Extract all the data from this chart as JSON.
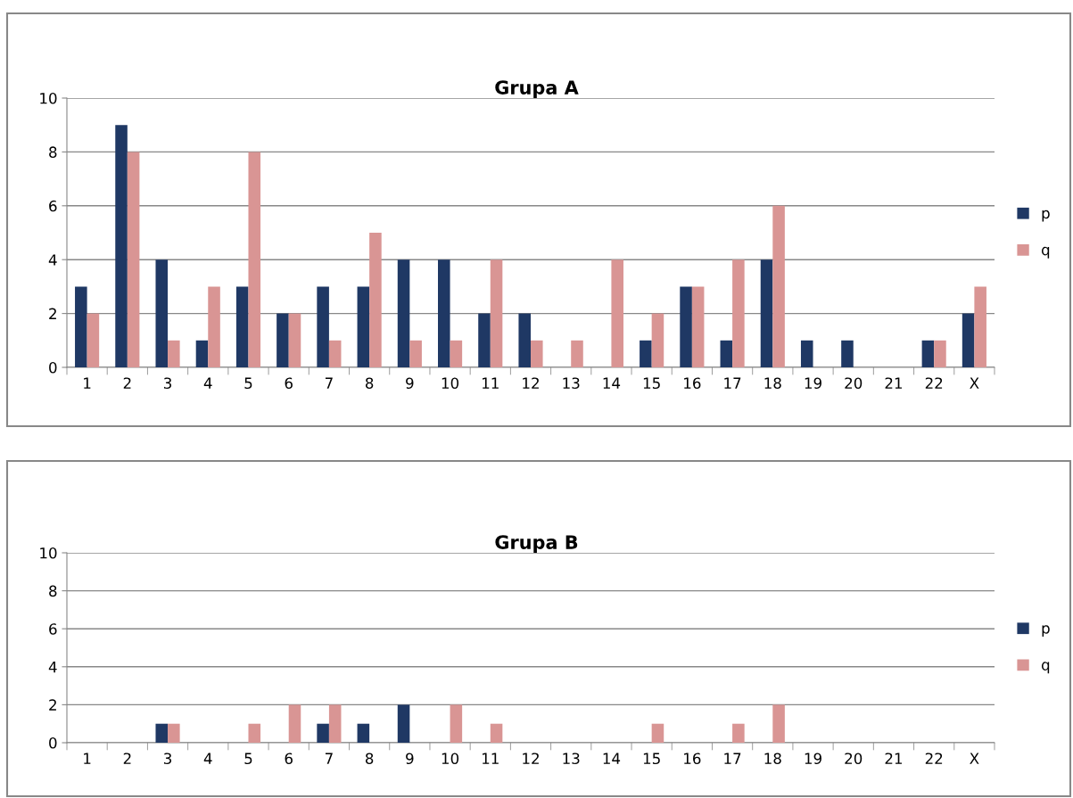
{
  "chart_data": [
    {
      "type": "bar",
      "title": "Grupa A",
      "categories": [
        "1",
        "2",
        "3",
        "4",
        "5",
        "6",
        "7",
        "8",
        "9",
        "10",
        "11",
        "12",
        "13",
        "14",
        "15",
        "16",
        "17",
        "18",
        "19",
        "20",
        "21",
        "22",
        "X"
      ],
      "series": [
        {
          "name": "p",
          "color": "#1f3864",
          "values": [
            3,
            9,
            4,
            1,
            3,
            2,
            3,
            3,
            4,
            4,
            2,
            2,
            0,
            0,
            1,
            3,
            1,
            4,
            1,
            1,
            0,
            1,
            2
          ]
        },
        {
          "name": "q",
          "color": "#d99594",
          "values": [
            2,
            8,
            1,
            3,
            8,
            2,
            1,
            5,
            1,
            1,
            4,
            1,
            1,
            4,
            2,
            3,
            4,
            6,
            0,
            0,
            0,
            1,
            3
          ]
        }
      ],
      "ylim": [
        0,
        10
      ],
      "yticks": [
        0,
        2,
        4,
        6,
        8,
        10
      ],
      "grid": "y",
      "legend": "right"
    },
    {
      "type": "bar",
      "title": "Grupa B",
      "categories": [
        "1",
        "2",
        "3",
        "4",
        "5",
        "6",
        "7",
        "8",
        "9",
        "10",
        "11",
        "12",
        "13",
        "14",
        "15",
        "16",
        "17",
        "18",
        "19",
        "20",
        "21",
        "22",
        "X"
      ],
      "series": [
        {
          "name": "p",
          "color": "#1f3864",
          "values": [
            0,
            0,
            1,
            0,
            0,
            0,
            1,
            1,
            2,
            0,
            0,
            0,
            0,
            0,
            0,
            0,
            0,
            0,
            0,
            0,
            0,
            0,
            0
          ]
        },
        {
          "name": "q",
          "color": "#d99594",
          "values": [
            0,
            0,
            1,
            0,
            1,
            2,
            2,
            0,
            0,
            2,
            1,
            0,
            0,
            0,
            1,
            0,
            1,
            2,
            0,
            0,
            0,
            0,
            0
          ]
        }
      ],
      "ylim": [
        0,
        10
      ],
      "yticks": [
        0,
        2,
        4,
        6,
        8,
        10
      ],
      "grid": "y",
      "legend": "right"
    }
  ]
}
